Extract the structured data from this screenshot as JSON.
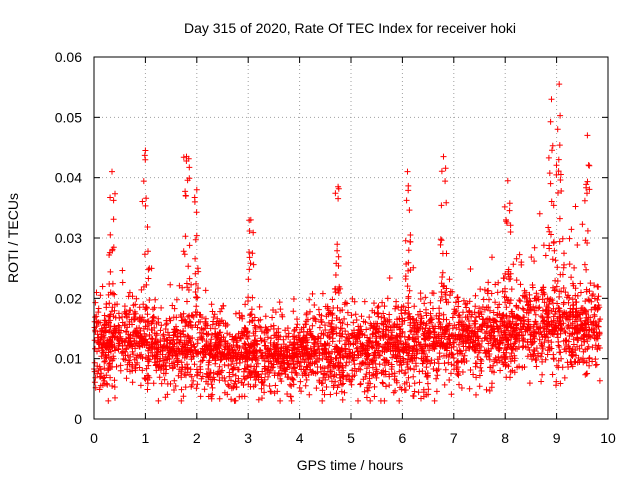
{
  "chart_data": {
    "type": "scatter",
    "title": "Day 315 of 2020, Rate Of TEC Index for receiver hoki",
    "xlabel": "GPS time / hours",
    "ylabel": "ROTI / TECUs",
    "xlim": [
      0,
      10
    ],
    "ylim": [
      0,
      0.06
    ],
    "grid": true,
    "marker": "+",
    "series_color": "#ff0000",
    "x_ticks": [
      "0",
      "1",
      "2",
      "3",
      "4",
      "5",
      "6",
      "7",
      "8",
      "9",
      "10"
    ],
    "y_ticks": [
      "0",
      "0.01",
      "0.02",
      "0.03",
      "0.04",
      "0.05",
      "0.06"
    ],
    "x_tick_values": [
      0,
      1,
      2,
      3,
      4,
      5,
      6,
      7,
      8,
      9,
      10
    ],
    "y_tick_values": [
      0,
      0.01,
      0.02,
      0.03,
      0.04,
      0.05,
      0.06
    ],
    "x_range_of_data": [
      0,
      9.85
    ],
    "envelope": {
      "hours": [
        0.0,
        0.5,
        1.0,
        1.5,
        2.0,
        2.5,
        3.0,
        3.5,
        4.0,
        4.5,
        5.0,
        5.5,
        6.0,
        6.5,
        7.0,
        7.5,
        8.0,
        8.5,
        9.0,
        9.5,
        9.85
      ],
      "roti_base": [
        0.011,
        0.012,
        0.012,
        0.011,
        0.011,
        0.01,
        0.01,
        0.01,
        0.01,
        0.011,
        0.01,
        0.011,
        0.011,
        0.012,
        0.012,
        0.013,
        0.013,
        0.014,
        0.014,
        0.014,
        0.013
      ],
      "roti_spread": [
        0.008,
        0.008,
        0.01,
        0.009,
        0.008,
        0.006,
        0.008,
        0.007,
        0.006,
        0.009,
        0.006,
        0.007,
        0.009,
        0.01,
        0.01,
        0.009,
        0.011,
        0.013,
        0.015,
        0.013,
        0.01
      ]
    },
    "peaks": [
      {
        "x": 0.35,
        "y": 0.041
      },
      {
        "x": 1.0,
        "y": 0.0445
      },
      {
        "x": 1.8,
        "y": 0.0435
      },
      {
        "x": 2.0,
        "y": 0.038
      },
      {
        "x": 3.05,
        "y": 0.033
      },
      {
        "x": 4.75,
        "y": 0.0385
      },
      {
        "x": 6.1,
        "y": 0.041
      },
      {
        "x": 6.8,
        "y": 0.0435
      },
      {
        "x": 8.05,
        "y": 0.0395
      },
      {
        "x": 8.9,
        "y": 0.053
      },
      {
        "x": 9.05,
        "y": 0.0555
      },
      {
        "x": 9.6,
        "y": 0.047
      }
    ],
    "point_count": 3500
  }
}
